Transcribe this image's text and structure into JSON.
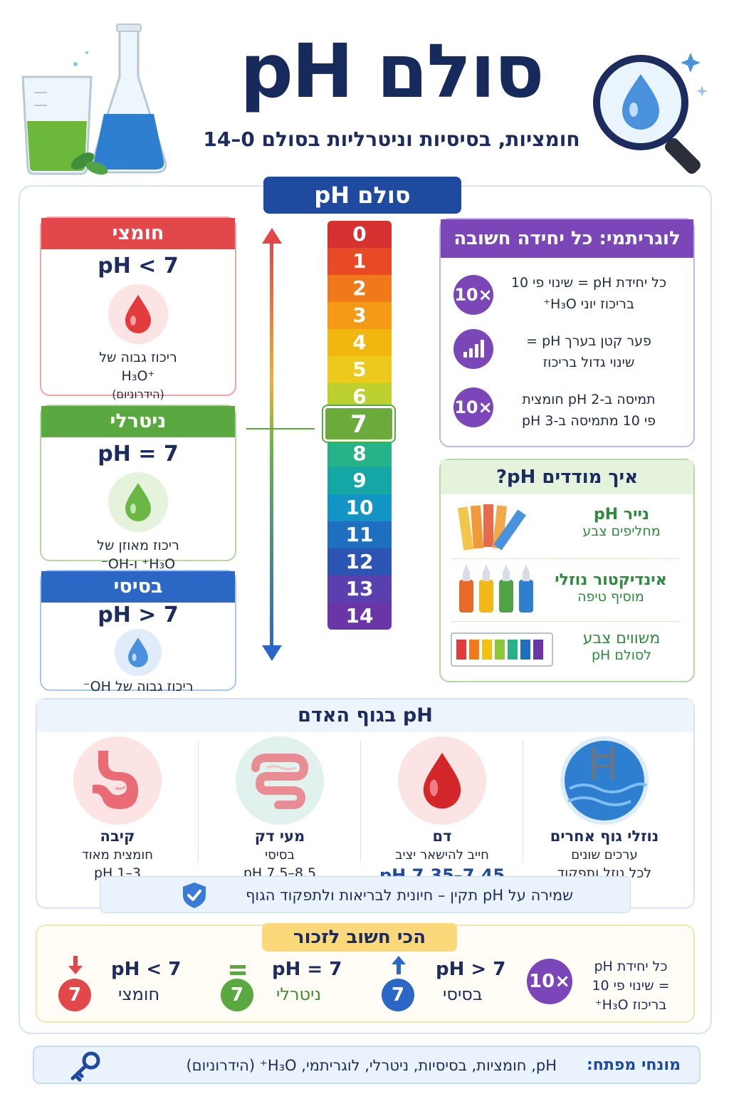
{
  "header": {
    "title": "סולם pH",
    "subtitle": "חומציות, בסיסיות וניטרליות בסולם 0–14"
  },
  "scale_banner": "סולם pH",
  "categories": [
    {
      "name": "חומצי",
      "formula": "pH < 7",
      "desc_lines": [
        "ריכוז גבוה של",
        "H₃O⁺",
        "(הידרוניום)"
      ],
      "color": "#e2474a"
    },
    {
      "name": "ניטרלי",
      "formula": "pH = 7",
      "desc_lines": [
        "ריכוז מאוזן של",
        "H₃O⁺ ו-OH⁻"
      ],
      "color": "#5aa840"
    },
    {
      "name": "בסיסי",
      "formula": "pH > 7",
      "desc_lines": [
        "ריכוז גבוה של OH⁻"
      ],
      "color": "#2b67c4"
    }
  ],
  "scale": {
    "values": [
      "0",
      "1",
      "2",
      "3",
      "4",
      "5",
      "6",
      "7",
      "8",
      "9",
      "10",
      "11",
      "12",
      "13",
      "14"
    ],
    "colors": [
      "#d63031",
      "#e84a25",
      "#f07a1a",
      "#f49a16",
      "#f2b70f",
      "#ecc91b",
      "#bcd030",
      "#6aab3c",
      "#27b38a",
      "#15a7a6",
      "#1294c4",
      "#1e6fc0",
      "#2b54b3",
      "#5a3fae",
      "#6a35a6"
    ]
  },
  "logarithmic": {
    "title": "לוגריתמי: כל יחידה חשובה",
    "items": [
      {
        "badge": "10×",
        "line1": "כל יחידת pH = שינוי פי 10",
        "line2": "בריכוז יוני H₃O⁺"
      },
      {
        "badge_icon": "bar-chart-icon",
        "line1": "פער קטן בערך pH =",
        "line2": "שינוי גדול בריכוז"
      },
      {
        "badge": "10×",
        "line1": "תמיסה ב-pH 2 חומצית",
        "line2": "פי 10 מתמיסה ב-pH 3"
      }
    ]
  },
  "measure": {
    "title": "איך מודדים pH?",
    "items": [
      {
        "title": "נייר pH",
        "sub": "מחליפים צבע"
      },
      {
        "title": "אינדיקטור נוזלי",
        "sub": "מוסיף טיפה"
      },
      {
        "title": "משווים צבע",
        "sub": "לסולם pH"
      }
    ]
  },
  "body": {
    "title": "pH בגוף האדם",
    "organs": [
      {
        "name": "קיבה",
        "desc": "חומצית מאוד",
        "ph": "pH 1–3"
      },
      {
        "name": "מעי דק",
        "desc": "בסיסי",
        "ph": "pH 7.5–8.5"
      },
      {
        "name": "דם",
        "desc": "חייב להישאר יציב",
        "ph": "pH 7.35–7.45"
      },
      {
        "name": "נוזלי גוף אחרים",
        "desc": "ערכים שונים",
        "ph": "לכל נוזל ותפקוד"
      }
    ],
    "health": "שמירה על pH תקין – חיונית לבריאות ולתפקוד הגוף"
  },
  "remember": {
    "title": "הכי חשוב לזכור",
    "items": [
      {
        "formula": "pH < 7",
        "label": "חומצי",
        "num": "7",
        "color": "#e2474a"
      },
      {
        "formula": "pH = 7",
        "label": "ניטרלי",
        "num": "7",
        "color": "#5aa840"
      },
      {
        "formula": "pH > 7",
        "label": "בסיסי",
        "num": "7",
        "color": "#2b67c4"
      }
    ],
    "log": {
      "badge": "10×",
      "lines": [
        "כל יחידת pH",
        "= שינוי פי 10",
        "בריכוז H₃O⁺"
      ]
    }
  },
  "key_terms": {
    "label": "מונחי מפתח:",
    "list": "pH, חומציות, בסיסיות, ניטרלי, לוגריתמי, H₃O⁺ (הידרוניום)"
  }
}
